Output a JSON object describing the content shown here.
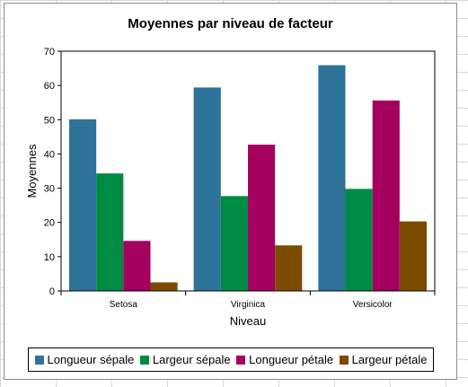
{
  "chart_data": {
    "type": "bar",
    "title": "Moyennes par niveau de facteur",
    "xlabel": "Niveau",
    "ylabel": "Moyennes",
    "ylim": [
      0,
      70
    ],
    "yticks": [
      0,
      10,
      20,
      30,
      40,
      50,
      60,
      70
    ],
    "grid": false,
    "legend_position": "bottom",
    "categories": [
      "Setosa",
      "Virginica",
      "Versicolor"
    ],
    "series": [
      {
        "name": "Longueur sépale",
        "color": "#2e7399",
        "values": [
          50.1,
          59.4,
          65.9
        ]
      },
      {
        "name": "Largeur sépale",
        "color": "#008b45",
        "values": [
          34.3,
          27.7,
          29.8
        ]
      },
      {
        "name": "Longueur pétale",
        "color": "#a4005e",
        "values": [
          14.6,
          42.7,
          55.6
        ]
      },
      {
        "name": "Largeur pétale",
        "color": "#7c4b00",
        "values": [
          2.5,
          13.3,
          20.3
        ]
      }
    ]
  }
}
